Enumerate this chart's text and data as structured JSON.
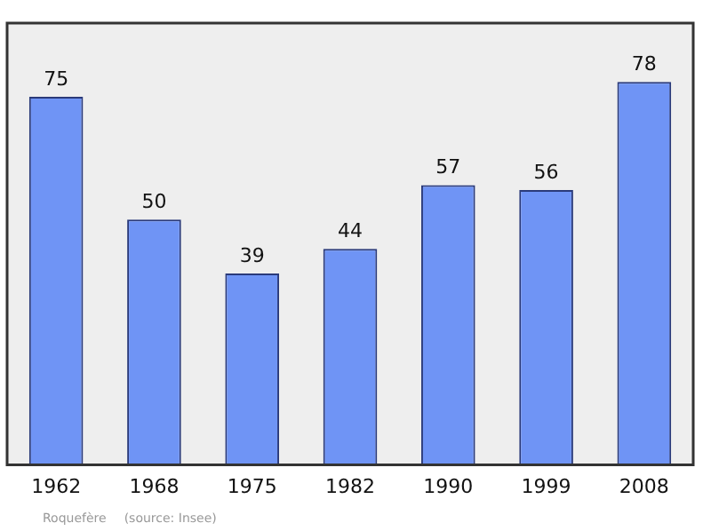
{
  "chart_data": {
    "type": "bar",
    "categories": [
      "1962",
      "1968",
      "1975",
      "1982",
      "1990",
      "1999",
      "2008"
    ],
    "values": [
      75,
      50,
      39,
      44,
      57,
      56,
      78
    ],
    "color": "#6f94f5",
    "data_labels": true,
    "grid": false,
    "legend": false,
    "annotations": [
      "Roquefère",
      "(source: Insee)"
    ]
  }
}
